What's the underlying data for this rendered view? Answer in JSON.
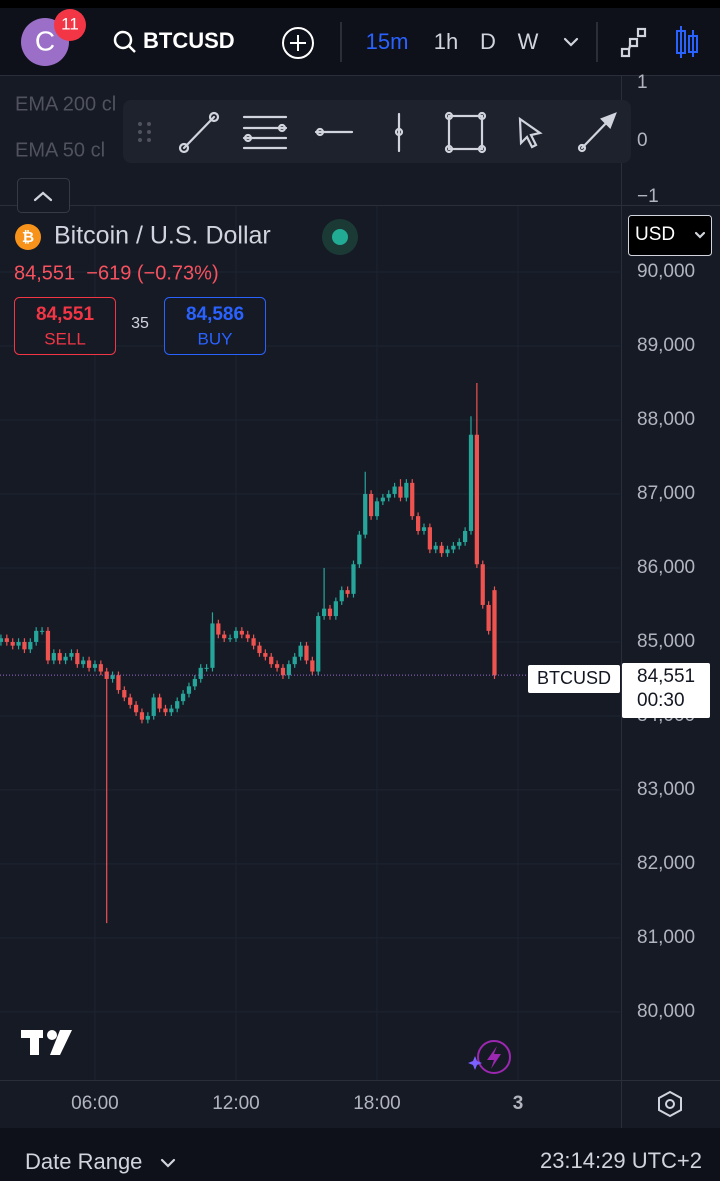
{
  "ui": {
    "avatar_letter": "C",
    "badge": "11",
    "symbol": "BTCUSD",
    "intervals": [
      "15m",
      "1h",
      "D",
      "W"
    ],
    "indicators": [
      "EMA 200 cl",
      "EMA 50 cl"
    ],
    "indicator_ticks": [
      "1",
      "0",
      "−1"
    ],
    "legend_title": "Bitcoin / U.S. Dollar",
    "legend_change": "84,551  −619 (−0.73%)",
    "sell_price": "84,551",
    "sell_label": "SELL",
    "spread": "35",
    "buy_price": "84,586",
    "buy_label": "BUY",
    "currency": "USD",
    "price_tag_symbol": "BTCUSD",
    "price_tag_price": "84,551",
    "price_tag_countdown": "00:30",
    "date_range": "Date Range",
    "clock": "23:14:29 UTC+2"
  },
  "chart_data": {
    "type": "candlestick",
    "x": [
      2,
      2.25,
      2.5,
      2.75,
      3,
      3.25,
      3.5,
      3.75,
      4,
      4.25,
      4.5,
      4.75,
      5,
      5.25,
      5.5,
      5.75,
      6,
      6.25,
      6.5,
      6.75,
      7,
      7.25,
      7.5,
      7.75,
      8,
      8.25,
      8.5,
      8.75,
      9,
      9.25,
      9.5,
      9.75,
      10,
      10.25,
      10.5,
      10.75,
      11,
      11.25,
      11.5,
      11.75,
      12,
      12.25,
      12.5,
      12.75,
      13,
      13.25,
      13.5,
      13.75,
      14,
      14.25,
      14.5,
      14.75,
      15,
      15.25,
      15.5,
      15.75,
      16,
      16.25,
      16.5,
      16.75,
      17,
      17.25,
      17.5,
      17.75,
      18,
      18.25,
      18.5,
      18.75,
      19,
      19.25,
      19.5,
      19.75,
      20,
      20.25,
      20.5,
      20.75,
      21,
      21.25,
      21.5,
      21.75,
      22,
      22.25,
      22.5,
      22.75,
      23
    ],
    "open": [
      85000,
      85050,
      85000,
      84950,
      85000,
      84900,
      85000,
      85150,
      85150,
      84750,
      84850,
      84750,
      84800,
      84850,
      84700,
      84750,
      84650,
      84700,
      84600,
      84500,
      84550,
      84350,
      84250,
      84150,
      84050,
      83950,
      84000,
      84250,
      84100,
      84050,
      84100,
      84200,
      84300,
      84400,
      84500,
      84650,
      84650,
      85250,
      85100,
      85050,
      85050,
      85150,
      85100,
      85050,
      84950,
      84850,
      84800,
      84700,
      84650,
      84550,
      84700,
      84800,
      84950,
      84750,
      84600,
      85350,
      85450,
      85350,
      85550,
      85700,
      85650,
      86050,
      86450,
      87000,
      86700,
      86900,
      86950,
      87000,
      87100,
      86950,
      87150,
      86700,
      86500,
      86550,
      86250,
      86300,
      86200,
      86250,
      86300,
      86350,
      86500,
      87800,
      86050,
      85500,
      85700
    ],
    "high": [
      85100,
      85100,
      85050,
      85050,
      85050,
      85050,
      85200,
      85200,
      85200,
      84900,
      84900,
      84850,
      84900,
      84900,
      84800,
      84800,
      84750,
      84750,
      84650,
      84600,
      84600,
      84400,
      84300,
      84200,
      84100,
      84050,
      84300,
      84300,
      84150,
      84150,
      84250,
      84350,
      84450,
      84550,
      84700,
      84700,
      85400,
      85300,
      85150,
      85100,
      85200,
      85200,
      85150,
      85100,
      85000,
      84900,
      84850,
      84750,
      84700,
      84750,
      84850,
      85000,
      85000,
      84800,
      85400,
      86000,
      85500,
      85600,
      85750,
      85750,
      86100,
      86500,
      87300,
      87050,
      86950,
      87000,
      87050,
      87150,
      87200,
      87200,
      87200,
      86750,
      86600,
      86600,
      86350,
      86350,
      86300,
      86350,
      86400,
      86550,
      88050,
      88500,
      86100,
      85550,
      85750
    ],
    "low": [
      84950,
      84950,
      84900,
      84900,
      84850,
      84850,
      84950,
      85100,
      84700,
      84700,
      84700,
      84700,
      84750,
      84650,
      84650,
      84600,
      84600,
      84550,
      81200,
      84450,
      84300,
      84200,
      84100,
      84000,
      83900,
      83900,
      83950,
      84050,
      84000,
      84000,
      84050,
      84150,
      84250,
      84350,
      84450,
      84600,
      84600,
      85050,
      85000,
      85000,
      85000,
      85050,
      85000,
      84900,
      84800,
      84750,
      84650,
      84600,
      84500,
      84500,
      84650,
      84750,
      84700,
      84550,
      84550,
      85300,
      85300,
      85300,
      85500,
      85600,
      85600,
      86000,
      86400,
      86650,
      86650,
      86850,
      86900,
      86950,
      86900,
      86900,
      86650,
      86450,
      86450,
      86200,
      86200,
      86150,
      86150,
      86200,
      86250,
      86300,
      86450,
      86000,
      85450,
      85100,
      84500
    ],
    "close": [
      85050,
      85000,
      84950,
      85000,
      84900,
      85000,
      85150,
      85150,
      84750,
      84850,
      84750,
      84800,
      84850,
      84700,
      84750,
      84650,
      84700,
      84600,
      84500,
      84550,
      84350,
      84250,
      84150,
      84050,
      83950,
      84000,
      84250,
      84100,
      84050,
      84100,
      84200,
      84300,
      84400,
      84500,
      84650,
      84650,
      85250,
      85100,
      85050,
      85050,
      85150,
      85100,
      85050,
      84950,
      84850,
      84800,
      84700,
      84650,
      84550,
      84700,
      84800,
      84950,
      84750,
      84600,
      85350,
      85450,
      85350,
      85550,
      85700,
      85650,
      86050,
      86450,
      87000,
      86700,
      86900,
      86950,
      87000,
      87100,
      86950,
      87150,
      86700,
      86500,
      86550,
      86250,
      86300,
      86200,
      86250,
      86300,
      86350,
      86500,
      87800,
      86050,
      85500,
      85150,
      84551
    ],
    "up_color": "#26a69a",
    "down_color": "#ef5350",
    "xlim": [
      1.96,
      28.34
    ],
    "ylim": [
      79080,
      90905
    ],
    "xticks": [
      {
        "value": 6,
        "label": "06:00"
      },
      {
        "value": 12,
        "label": "12:00"
      },
      {
        "value": 18,
        "label": "18:00"
      },
      {
        "value": 24,
        "label": "3"
      }
    ],
    "yticks": [
      {
        "value": 80000,
        "label": "80,000"
      },
      {
        "value": 81000,
        "label": "81,000"
      },
      {
        "value": 82000,
        "label": "82,000"
      },
      {
        "value": 83000,
        "label": "83,000"
      },
      {
        "value": 84000,
        "label": "84,000"
      },
      {
        "value": 85000,
        "label": "85,000"
      },
      {
        "value": 86000,
        "label": "86,000"
      },
      {
        "value": 87000,
        "label": "87,000"
      },
      {
        "value": 88000,
        "label": "88,000"
      },
      {
        "value": 89000,
        "label": "89,000"
      },
      {
        "value": 90000,
        "label": "90,000"
      }
    ],
    "grid": true
  }
}
